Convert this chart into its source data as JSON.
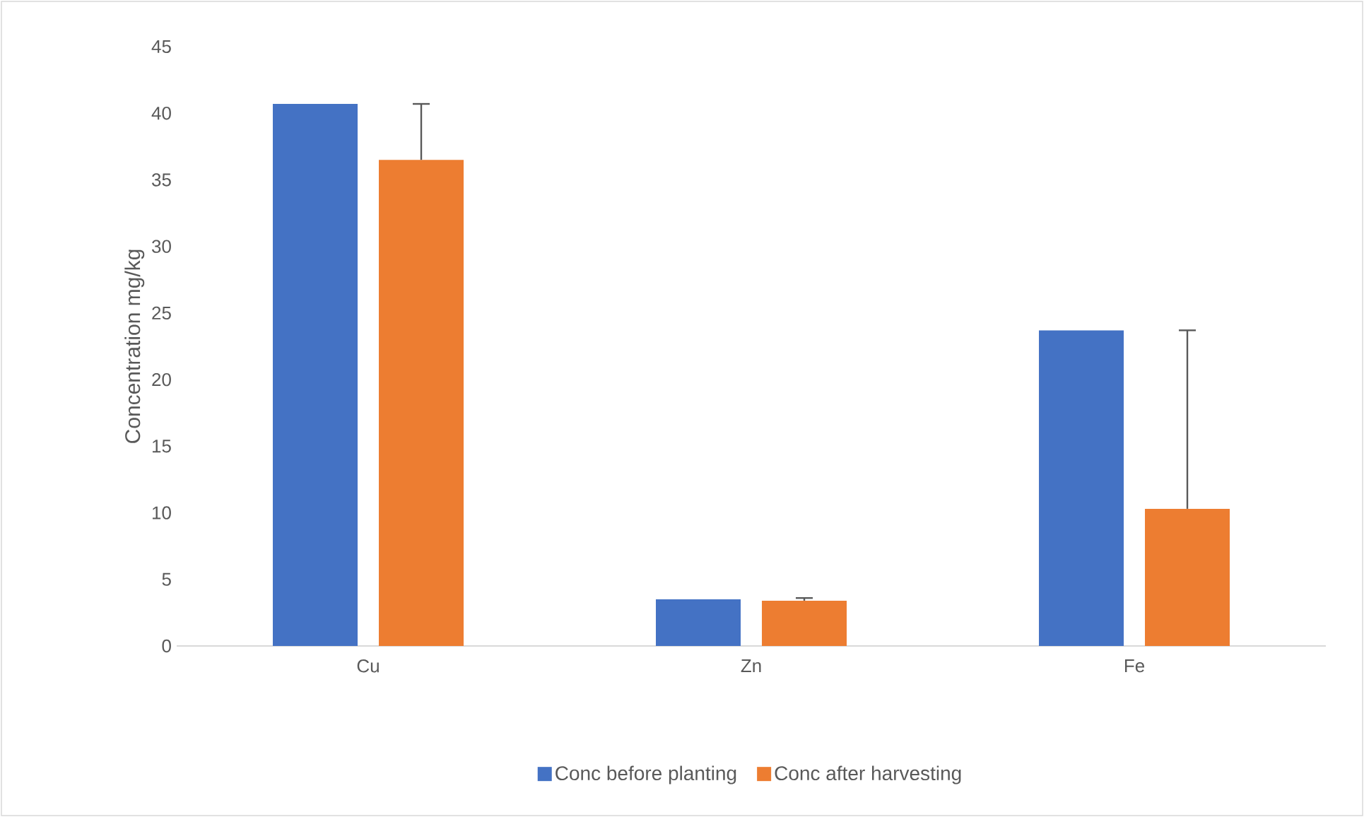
{
  "chart_data": {
    "type": "bar",
    "ylabel": "Concentration mg/kg",
    "categories": [
      "Cu",
      "Zn",
      "Fe"
    ],
    "series": [
      {
        "name": "Conc  before planting",
        "color": "#4472c4",
        "values": [
          40.7,
          3.5,
          23.7
        ]
      },
      {
        "name": "Conc after harvesting",
        "color": "#ed7d31",
        "values": [
          36.5,
          3.4,
          10.3
        ],
        "errors": [
          [
            36.5,
            40.7
          ],
          [
            3.4,
            3.6
          ],
          [
            10.3,
            23.7
          ]
        ]
      }
    ],
    "ylim": [
      0,
      45
    ],
    "yticks": [
      0,
      5,
      10,
      15,
      20,
      25,
      30,
      35,
      40,
      45
    ],
    "grid": false,
    "legend": "bottom"
  }
}
